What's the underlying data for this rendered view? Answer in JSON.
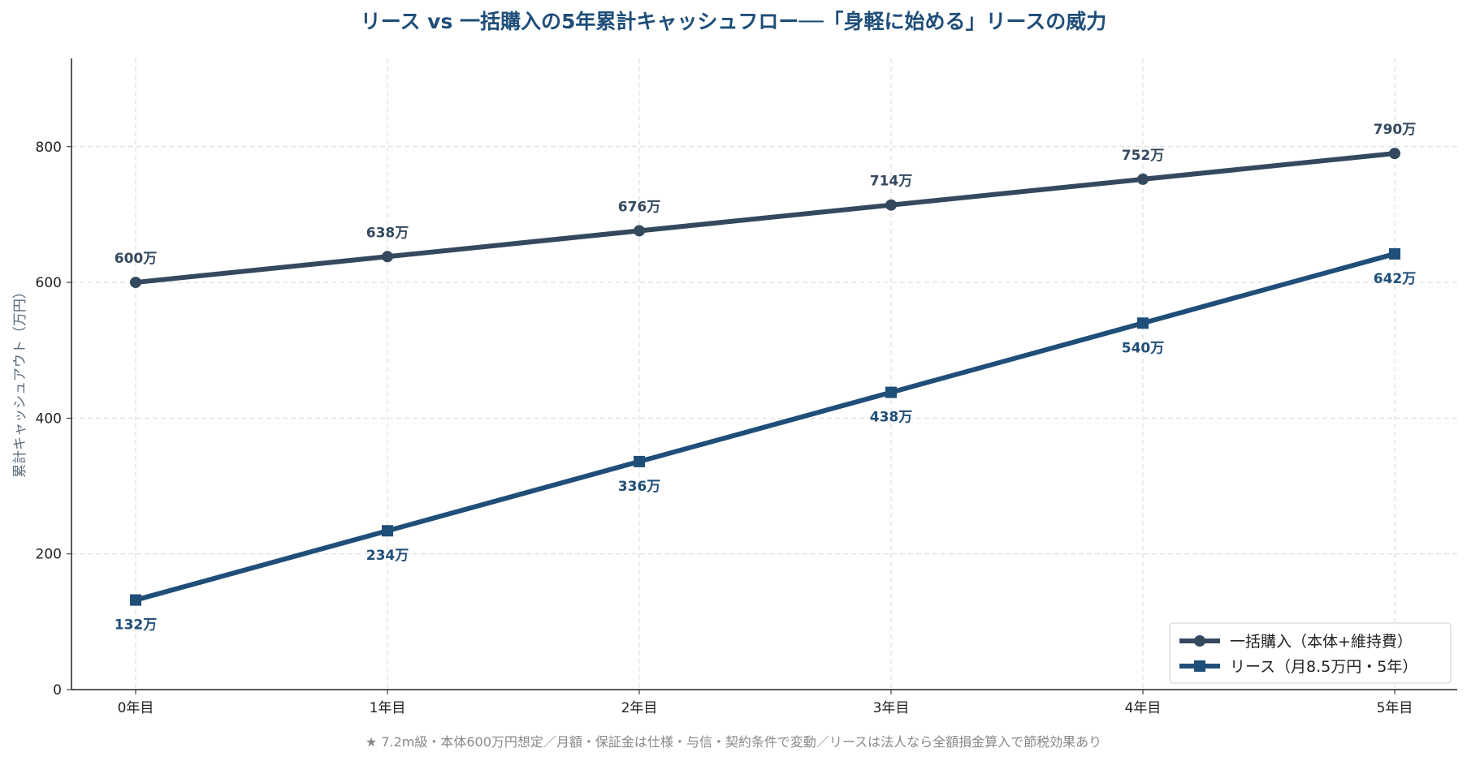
{
  "chart_data": {
    "type": "line",
    "title": "リース vs 一括購入の5年累計キャッシュフロー──「身軽に始める」リースの威力",
    "ylabel": "累計キャッシュアウト（万円）",
    "xlabel": "",
    "categories": [
      "0年目",
      "1年目",
      "2年目",
      "3年目",
      "4年目",
      "5年目"
    ],
    "ylim": [
      0,
      930
    ],
    "yticks": [
      0,
      200,
      400,
      600,
      800
    ],
    "grid": true,
    "legend_position": "bottom-right",
    "series": [
      {
        "name": "一括購入（本体+維持費）",
        "values": [
          600,
          638,
          676,
          714,
          752,
          790
        ],
        "labels": [
          "600万",
          "638万",
          "676万",
          "714万",
          "752万",
          "790万"
        ],
        "color": "#34495e",
        "marker": "circle",
        "label_side": "above"
      },
      {
        "name": "リース（月8.5万円・5年）",
        "values": [
          132,
          234,
          336,
          438,
          540,
          642
        ],
        "labels": [
          "132万",
          "234万",
          "336万",
          "438万",
          "540万",
          "642万"
        ],
        "color": "#1f4e79",
        "marker": "square",
        "label_side": "below"
      }
    ],
    "footnote": "★ 7.2m級・本体600万円想定／月額・保証金は仕様・与信・契約条件で変動／リースは法人なら全額損金算入で節税効果あり"
  }
}
